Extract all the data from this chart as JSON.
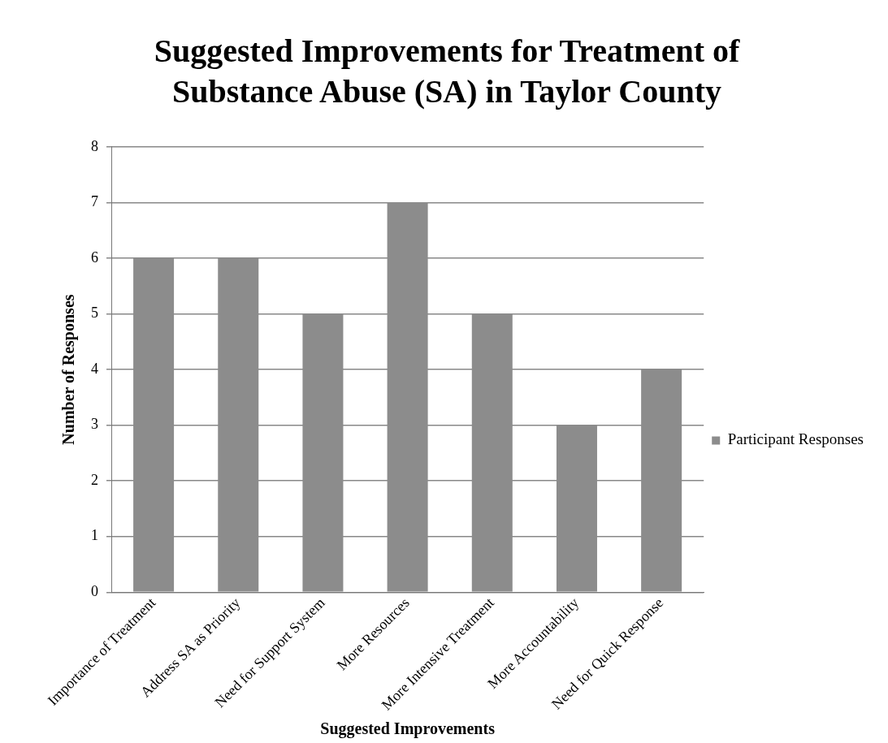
{
  "chart_data": {
    "type": "bar",
    "title": "Suggested Improvements for Treatment of Substance Abuse (SA) in Taylor County",
    "xlabel": "Suggested Improvements",
    "ylabel": "Number of Responses",
    "categories": [
      "Importance of Treatment",
      "Address SA as Priority",
      "Need for Support System",
      "More Resources",
      "More Intensive Treatment",
      "More Accountability",
      "Need for Quick Response"
    ],
    "series": [
      {
        "name": "Participant Responses",
        "color": "#8c8c8c",
        "values": [
          6,
          6,
          5,
          7,
          5,
          3,
          4
        ]
      }
    ],
    "ylim": [
      0,
      8
    ],
    "yticks": [
      0,
      1,
      2,
      3,
      4,
      5,
      6,
      7,
      8
    ],
    "grid": "y",
    "legend": "right"
  }
}
